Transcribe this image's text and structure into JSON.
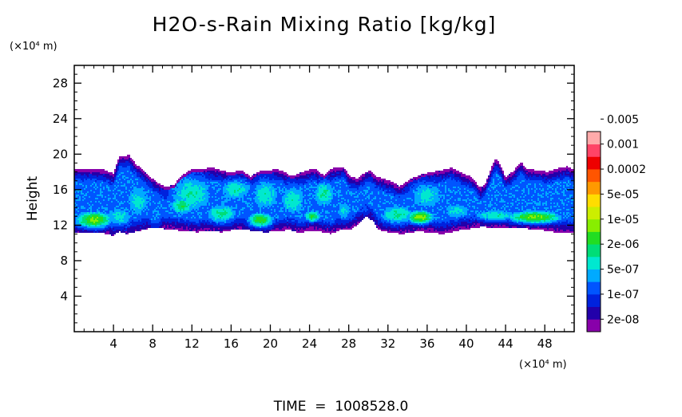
{
  "chart_data": {
    "type": "heatmap",
    "title": "H2O-s-Rain Mixing Ratio [kg/kg]",
    "ylabel": "Height",
    "y_unit": "(×10⁴ m)",
    "x_unit": "(×10⁴ m)",
    "xlim": [
      0,
      51
    ],
    "ylim": [
      0,
      30
    ],
    "x_ticks": [
      4,
      8,
      12,
      16,
      20,
      24,
      28,
      32,
      36,
      40,
      44,
      48
    ],
    "y_ticks": [
      4,
      8,
      12,
      16,
      20,
      24,
      28
    ],
    "footer": "TIME  =  1008528.0",
    "colorbar": {
      "colors": [
        "#8800aa",
        "#2200aa",
        "#0022dd",
        "#0055ff",
        "#00aaff",
        "#00e8d0",
        "#00dd77",
        "#22dd22",
        "#88ee00",
        "#ccee00",
        "#ffdd00",
        "#ff9900",
        "#ff5500",
        "#ee0000",
        "#ff4466",
        "#ffaaaa"
      ],
      "labels": [
        "2e-08",
        "1e-07",
        "5e-07",
        "2e-06",
        "1e-05",
        "5e-05",
        "0.0002",
        "0.001",
        "0.005"
      ]
    },
    "field": {
      "top_profile": [
        [
          0,
          18.4
        ],
        [
          3,
          18.3
        ],
        [
          4,
          17.8
        ],
        [
          4.6,
          19.7
        ],
        [
          5.6,
          19.9
        ],
        [
          6.2,
          19.0
        ],
        [
          7,
          18.2
        ],
        [
          7.8,
          17.4
        ],
        [
          8.6,
          16.7
        ],
        [
          9.4,
          16.3
        ],
        [
          10.2,
          16.6
        ],
        [
          11,
          17.6
        ],
        [
          12,
          18.3
        ],
        [
          13,
          18.3
        ],
        [
          14,
          18.5
        ],
        [
          15,
          18.2
        ],
        [
          16,
          17.9
        ],
        [
          17,
          18.2
        ],
        [
          18,
          17.5
        ],
        [
          19,
          18.1
        ],
        [
          20,
          18.2
        ],
        [
          20.7,
          18.3
        ],
        [
          21.3,
          18.1
        ],
        [
          22.2,
          17.5
        ],
        [
          23.3,
          18.0
        ],
        [
          24.5,
          18.4
        ],
        [
          25.5,
          17.6
        ],
        [
          26.3,
          18.4
        ],
        [
          27.5,
          18.6
        ],
        [
          28.2,
          17.4
        ],
        [
          28.9,
          17.3
        ],
        [
          29.8,
          18.0
        ],
        [
          30.2,
          18.2
        ],
        [
          30.8,
          17.5
        ],
        [
          31.6,
          17.2
        ],
        [
          32.4,
          16.9
        ],
        [
          33.2,
          16.4
        ],
        [
          34.5,
          17.3
        ],
        [
          35.6,
          17.8
        ],
        [
          36.5,
          18.0
        ],
        [
          37.5,
          18.2
        ],
        [
          38.5,
          18.5
        ],
        [
          39.5,
          17.9
        ],
        [
          40.6,
          17.4
        ],
        [
          41.4,
          16.2
        ],
        [
          42.0,
          16.8
        ],
        [
          42.6,
          18.6
        ],
        [
          43.0,
          19.5
        ],
        [
          43.5,
          18.8
        ],
        [
          44,
          17.4
        ],
        [
          44.8,
          18.1
        ],
        [
          45.6,
          19.1
        ],
        [
          46.2,
          18.3
        ],
        [
          47.4,
          18.2
        ],
        [
          48.3,
          18.0
        ],
        [
          49.3,
          18.4
        ],
        [
          50.3,
          18.6
        ],
        [
          51,
          18.3
        ]
      ],
      "bottom_profile": [
        [
          0,
          11.2
        ],
        [
          3,
          11.1
        ],
        [
          3.9,
          10.8
        ],
        [
          4.6,
          11.3
        ],
        [
          5.4,
          11.0
        ],
        [
          6.5,
          11.3
        ],
        [
          7.6,
          11.6
        ],
        [
          8.6,
          11.7
        ],
        [
          9.6,
          11.5
        ],
        [
          10.6,
          11.4
        ],
        [
          11.6,
          11.3
        ],
        [
          12.6,
          11.2
        ],
        [
          13.6,
          11.4
        ],
        [
          15,
          11.2
        ],
        [
          16.5,
          11.5
        ],
        [
          18,
          11.4
        ],
        [
          19.5,
          11.2
        ],
        [
          20.8,
          11.3
        ],
        [
          22,
          11.5
        ],
        [
          23,
          11.1
        ],
        [
          24,
          11.4
        ],
        [
          25,
          11.3
        ],
        [
          26.2,
          11.0
        ],
        [
          27,
          11.4
        ],
        [
          28.2,
          11.5
        ],
        [
          29.1,
          12.2
        ],
        [
          29.8,
          13.0
        ],
        [
          30.5,
          12.4
        ],
        [
          31,
          11.5
        ],
        [
          32,
          11.2
        ],
        [
          33.5,
          11.0
        ],
        [
          35,
          11.3
        ],
        [
          36,
          11.2
        ],
        [
          37.5,
          11.0
        ],
        [
          38.5,
          11.2
        ],
        [
          39.5,
          11.5
        ],
        [
          40.5,
          11.6
        ],
        [
          41.5,
          11.8
        ],
        [
          43,
          11.7
        ],
        [
          44.5,
          11.6
        ],
        [
          46,
          11.6
        ],
        [
          47.5,
          11.5
        ],
        [
          49,
          11.2
        ],
        [
          51,
          11.1
        ]
      ],
      "cores": [
        {
          "x": 2.0,
          "y": 12.6,
          "sx": 2.2,
          "sy": 1.1,
          "v": 8.4
        },
        {
          "x": 4.6,
          "y": 13.0,
          "sx": 2.0,
          "sy": 1.6,
          "v": 5.4
        },
        {
          "x": 6.5,
          "y": 14.7,
          "sx": 1.8,
          "sy": 2.8,
          "v": 5.4
        },
        {
          "x": 8.2,
          "y": 13.2,
          "sx": 1.2,
          "sy": 1.6,
          "v": 4.4
        },
        {
          "x": 11.0,
          "y": 14.2,
          "sx": 1.6,
          "sy": 1.2,
          "v": 6.9
        },
        {
          "x": 12.0,
          "y": 15.5,
          "sx": 3.0,
          "sy": 2.8,
          "v": 5.9
        },
        {
          "x": 15.0,
          "y": 13.3,
          "sx": 2.2,
          "sy": 1.4,
          "v": 6.3
        },
        {
          "x": 16.5,
          "y": 16.0,
          "sx": 2.2,
          "sy": 1.6,
          "v": 5.9
        },
        {
          "x": 19.0,
          "y": 12.6,
          "sx": 1.6,
          "sy": 1.0,
          "v": 7.8
        },
        {
          "x": 19.5,
          "y": 15.4,
          "sx": 2.0,
          "sy": 2.5,
          "v": 5.7
        },
        {
          "x": 22.3,
          "y": 14.8,
          "sx": 1.8,
          "sy": 2.4,
          "v": 5.8
        },
        {
          "x": 24.3,
          "y": 13.0,
          "sx": 1.0,
          "sy": 0.8,
          "v": 7.3
        },
        {
          "x": 25.5,
          "y": 15.5,
          "sx": 1.5,
          "sy": 2.0,
          "v": 6.1
        },
        {
          "x": 27.5,
          "y": 13.7,
          "sx": 1.2,
          "sy": 1.6,
          "v": 5.2
        },
        {
          "x": 29.6,
          "y": 14.0,
          "sx": 0.9,
          "sy": 1.4,
          "v": 3.4
        },
        {
          "x": 33.0,
          "y": 13.2,
          "sx": 2.4,
          "sy": 1.4,
          "v": 6.2
        },
        {
          "x": 35.3,
          "y": 12.9,
          "sx": 1.6,
          "sy": 0.9,
          "v": 8.6
        },
        {
          "x": 36.0,
          "y": 15.3,
          "sx": 2.6,
          "sy": 2.2,
          "v": 5.4
        },
        {
          "x": 39.0,
          "y": 13.6,
          "sx": 2.2,
          "sy": 1.3,
          "v": 5.3
        },
        {
          "x": 43.0,
          "y": 13.1,
          "sx": 3.0,
          "sy": 0.9,
          "v": 5.8
        },
        {
          "x": 47.0,
          "y": 12.9,
          "sx": 3.4,
          "sy": 0.85,
          "v": 8.2
        },
        {
          "x": 46.0,
          "y": 15.6,
          "sx": 3.5,
          "sy": 1.8,
          "v": 3.1
        }
      ]
    }
  }
}
